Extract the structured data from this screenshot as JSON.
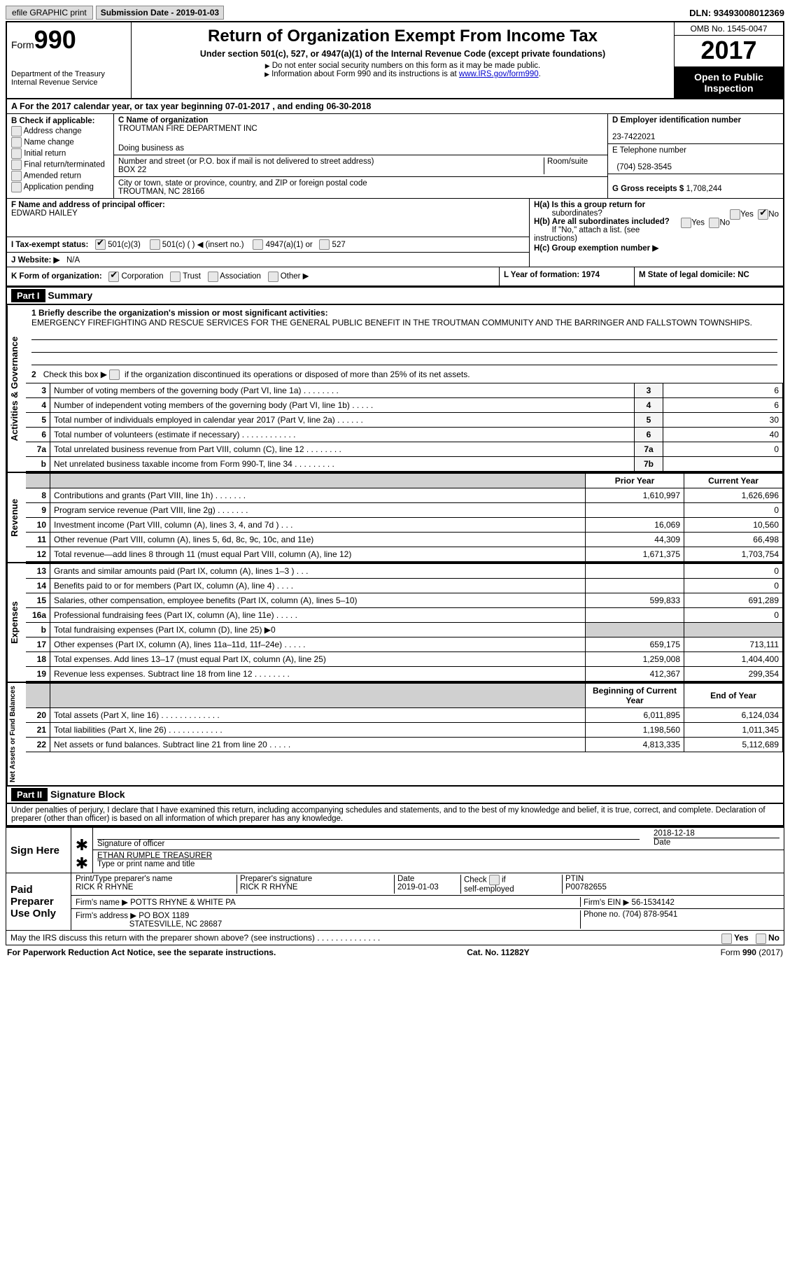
{
  "topbar": {
    "efile": "efile GRAPHIC print",
    "submission_label": "Submission Date - 2019-01-03",
    "dln": "DLN: 93493008012369"
  },
  "header": {
    "form_prefix": "Form",
    "form_number": "990",
    "dept": "Department of the Treasury",
    "irs": "Internal Revenue Service",
    "title": "Return of Organization Exempt From Income Tax",
    "subtitle": "Under section 501(c), 527, or 4947(a)(1) of the Internal Revenue Code (except private foundations)",
    "note1": "Do not enter social security numbers on this form as it may be made public.",
    "note2_pre": "Information about Form 990 and its instructions is at ",
    "note2_link": "www.IRS.gov/form990",
    "omb": "OMB No. 1545-0047",
    "year": "2017",
    "inspect1": "Open to Public",
    "inspect2": "Inspection"
  },
  "rowA": "A   For the 2017 calendar year, or tax year beginning 07-01-2017    , and ending 06-30-2018",
  "colB": {
    "label": "B Check if applicable:",
    "items": [
      "Address change",
      "Name change",
      "Initial return",
      "Final return/terminated",
      "Amended return",
      "Application pending"
    ]
  },
  "colC": {
    "name_lbl": "C Name of organization",
    "name": "TROUTMAN FIRE DEPARTMENT INC",
    "dba_lbl": "Doing business as",
    "addr_lbl": "Number and street (or P.O. box if mail is not delivered to street address)",
    "room_lbl": "Room/suite",
    "addr": "BOX 22",
    "city_lbl": "City or town, state or province, country, and ZIP or foreign postal code",
    "city": "TROUTMAN, NC  28166",
    "officer_lbl": "F Name and address of principal officer:",
    "officer": "EDWARD HAILEY"
  },
  "colD": {
    "ein_lbl": "D Employer identification number",
    "ein": "23-7422021",
    "phone_lbl": "E Telephone number",
    "phone": "(704) 528-3545",
    "gross_lbl": "G Gross receipts $",
    "gross": "1,708,244"
  },
  "rowI": {
    "label": "I   Tax-exempt status:",
    "opts": [
      "501(c)(3)",
      "501(c) (  ) ◀ (insert no.)",
      "4947(a)(1) or",
      "527"
    ]
  },
  "rowJ": {
    "label": "J   Website: ▶",
    "val": "N/A"
  },
  "rowH": {
    "a": "H(a)  Is this a group return for",
    "a2": "subordinates?",
    "b": "H(b)  Are all subordinates included?",
    "b2": "If \"No,\" attach a list. (see instructions)",
    "c": "H(c)  Group exemption number ▶"
  },
  "rowK": {
    "k1_lbl": "K Form of organization:",
    "k1_opts": [
      "Corporation",
      "Trust",
      "Association",
      "Other ▶"
    ],
    "k2": "L Year of formation: 1974",
    "k3": "M State of legal domicile: NC"
  },
  "part1": {
    "hdr": "Part I",
    "title": "Summary",
    "q1": "1  Briefly describe the organization's mission or most significant activities:",
    "mission": "EMERGENCY FIREFIGHTING AND RESCUE SERVICES FOR THE GENERAL PUBLIC BENEFIT IN THE TROUTMAN COMMUNITY AND THE BARRINGER AND FALLSTOWN TOWNSHIPS.",
    "q2": "2   Check this box ▶        if the organization discontinued its operations or disposed of more than 25% of its net assets."
  },
  "side_labels": {
    "gov": "Activities & Governance",
    "rev": "Revenue",
    "exp": "Expenses",
    "net": "Net Assets or\nFund Balances"
  },
  "gov_lines": [
    {
      "n": "3",
      "d": "Number of voting members of the governing body (Part VI, line 1a)   .    .    .    .    .    .    .    .",
      "ln": "3",
      "v": "6"
    },
    {
      "n": "4",
      "d": "Number of independent voting members of the governing body (Part VI, line 1b)   .    .    .    .    .",
      "ln": "4",
      "v": "6"
    },
    {
      "n": "5",
      "d": "Total number of individuals employed in calendar year 2017 (Part V, line 2a)   .    .    .    .    .    .",
      "ln": "5",
      "v": "30"
    },
    {
      "n": "6",
      "d": "Total number of volunteers (estimate if necessary)   .    .    .    .    .    .    .    .    .    .    .    .",
      "ln": "6",
      "v": "40"
    },
    {
      "n": "7a",
      "d": "Total unrelated business revenue from Part VIII, column (C), line 12   .    .    .    .    .    .    .    .",
      "ln": "7a",
      "v": "0"
    },
    {
      "n": "b",
      "d": "Net unrelated business taxable income from Form 990-T, line 34   .    .    .    .    .    .    .    .    .",
      "ln": "7b",
      "v": ""
    }
  ],
  "col_hdrs": {
    "prior": "Prior Year",
    "current": "Current Year",
    "boy": "Beginning of Current Year",
    "eoy": "End of Year"
  },
  "rev_lines": [
    {
      "n": "8",
      "d": "Contributions and grants (Part VIII, line 1h)   .    .    .    .    .    .    .",
      "p": "1,610,997",
      "c": "1,626,696"
    },
    {
      "n": "9",
      "d": "Program service revenue (Part VIII, line 2g)   .    .    .    .    .    .    .",
      "p": "",
      "c": "0"
    },
    {
      "n": "10",
      "d": "Investment income (Part VIII, column (A), lines 3, 4, and 7d )   .    .    .",
      "p": "16,069",
      "c": "10,560"
    },
    {
      "n": "11",
      "d": "Other revenue (Part VIII, column (A), lines 5, 6d, 8c, 9c, 10c, and 11e)",
      "p": "44,309",
      "c": "66,498"
    },
    {
      "n": "12",
      "d": "Total revenue—add lines 8 through 11 (must equal Part VIII, column (A), line 12)",
      "p": "1,671,375",
      "c": "1,703,754"
    }
  ],
  "exp_lines": [
    {
      "n": "13",
      "d": "Grants and similar amounts paid (Part IX, column (A), lines 1–3 )   .    .    .",
      "p": "",
      "c": "0"
    },
    {
      "n": "14",
      "d": "Benefits paid to or for members (Part IX, column (A), line 4)   .    .    .    .",
      "p": "",
      "c": "0"
    },
    {
      "n": "15",
      "d": "Salaries, other compensation, employee benefits (Part IX, column (A), lines 5–10)",
      "p": "599,833",
      "c": "691,289"
    },
    {
      "n": "16a",
      "d": "Professional fundraising fees (Part IX, column (A), line 11e)   .    .    .    .    .",
      "p": "",
      "c": "0"
    },
    {
      "n": "b",
      "d": "Total fundraising expenses (Part IX, column (D), line 25) ▶0",
      "p": "shade",
      "c": "shade"
    },
    {
      "n": "17",
      "d": "Other expenses (Part IX, column (A), lines 11a–11d, 11f–24e)   .    .    .    .    .",
      "p": "659,175",
      "c": "713,111"
    },
    {
      "n": "18",
      "d": "Total expenses. Add lines 13–17 (must equal Part IX, column (A), line 25)",
      "p": "1,259,008",
      "c": "1,404,400"
    },
    {
      "n": "19",
      "d": "Revenue less expenses. Subtract line 18 from line 12 .    .    .    .    .    .    .    .",
      "p": "412,367",
      "c": "299,354"
    }
  ],
  "net_lines": [
    {
      "n": "20",
      "d": "Total assets (Part X, line 16)  .    .    .    .    .    .    .    .    .    .    .    .    .",
      "p": "6,011,895",
      "c": "6,124,034"
    },
    {
      "n": "21",
      "d": "Total liabilities (Part X, line 26)  .    .    .    .    .    .    .    .    .    .    .    .",
      "p": "1,198,560",
      "c": "1,011,345"
    },
    {
      "n": "22",
      "d": "Net assets or fund balances. Subtract line 21 from line 20   .    .    .    .    .",
      "p": "4,813,335",
      "c": "5,112,689"
    }
  ],
  "part2": {
    "hdr": "Part II",
    "title": "Signature Block",
    "penalty": "Under penalties of perjury, I declare that I have examined this return, including accompanying schedules and statements, and to the best of my knowledge and belief, it is true, correct, and complete. Declaration of preparer (other than officer) is based on all information of which preparer has any knowledge."
  },
  "sign": {
    "label": "Sign Here",
    "sig_of_officer": "Signature of officer",
    "date_lbl": "Date",
    "date": "2018-12-18",
    "name": "ETHAN RUMPLE TREASURER",
    "name_lbl": "Type or print name and title"
  },
  "preparer": {
    "label": "Paid Preparer Use Only",
    "print_lbl": "Print/Type preparer's name",
    "print_name": "RICK R RHYNE",
    "sig_lbl": "Preparer's signature",
    "sig_name": "RICK R RHYNE",
    "date_lbl": "Date",
    "date": "2019-01-03",
    "check_lbl": "Check        if self-employed",
    "ptin_lbl": "PTIN",
    "ptin": "P00782655",
    "firm_name_lbl": "Firm's name      ▶",
    "firm_name": "POTTS RHYNE & WHITE PA",
    "firm_ein_lbl": "Firm's EIN ▶",
    "firm_ein": "56-1534142",
    "firm_addr_lbl": "Firm's address ▶",
    "firm_addr1": "PO BOX 1189",
    "firm_addr2": "STATESVILLE, NC  28687",
    "phone_lbl": "Phone no.",
    "phone": "(704) 878-9541"
  },
  "discuss": "May the IRS discuss this return with the preparer shown above? (see instructions)   .    .    .    .    .    .    .    .    .    .    .    .    .    .",
  "footer": {
    "left": "For Paperwork Reduction Act Notice, see the separate instructions.",
    "mid": "Cat. No. 11282Y",
    "right": "Form 990 (2017)"
  }
}
